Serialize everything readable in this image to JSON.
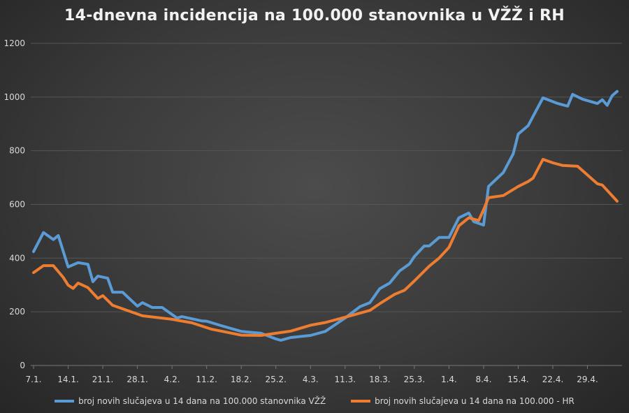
{
  "chart_data": {
    "type": "line",
    "title": "14-dnevna incidencija na 100.000 stanovnika u VŽŽ i RH",
    "xlabel": "",
    "ylabel": "",
    "ylim": [
      0,
      1200
    ],
    "yticks": [
      "0",
      "200",
      "400",
      "600",
      "800",
      "1000",
      "1200"
    ],
    "xticks": [
      "7.1.",
      "14.1.",
      "21.1.",
      "28.1.",
      "4.2.",
      "11.2.",
      "18.2.",
      "25.2.",
      "4.3.",
      "11.3.",
      "18.3.",
      "25.3.",
      "1.4.",
      "8.4.",
      "15.4.",
      "22.4.",
      "29.4."
    ],
    "xrange": [
      "7.1.",
      "5.5."
    ],
    "grid": "horizontal",
    "legend_position": "bottom",
    "series": [
      {
        "name": "broj novih slučajeva u 14 dana na 100.000 stanovnika VŽŽ",
        "color": "#5b9bd5",
        "points": [
          [
            "7.1.",
            424
          ],
          [
            "9.1.",
            495
          ],
          [
            "11.1.",
            469
          ],
          [
            "12.1.",
            484
          ],
          [
            "14.1.",
            367
          ],
          [
            "16.1.",
            383
          ],
          [
            "18.1.",
            377
          ],
          [
            "19.1.",
            312
          ],
          [
            "20.1.",
            333
          ],
          [
            "22.1.",
            325
          ],
          [
            "23.1.",
            273
          ],
          [
            "25.1.",
            273
          ],
          [
            "28.1.",
            221
          ],
          [
            "29.1.",
            234
          ],
          [
            "31.1.",
            216
          ],
          [
            "2.2.",
            216
          ],
          [
            "5.2.",
            177
          ],
          [
            "6.2.",
            182
          ],
          [
            "10.2.",
            166
          ],
          [
            "11.2.",
            165
          ],
          [
            "14.2.",
            148
          ],
          [
            "18.2.",
            127
          ],
          [
            "22.2.",
            120
          ],
          [
            "25.2.",
            99
          ],
          [
            "26.2.",
            94
          ],
          [
            "28.2.",
            104
          ],
          [
            "4.3.",
            112
          ],
          [
            "7.3.",
            127
          ],
          [
            "11.3.",
            177
          ],
          [
            "14.3.",
            219
          ],
          [
            "16.3.",
            234
          ],
          [
            "18.3.",
            286
          ],
          [
            "20.3.",
            307
          ],
          [
            "22.3.",
            352
          ],
          [
            "24.3.",
            378
          ],
          [
            "25.3.",
            406
          ],
          [
            "27.3.",
            445
          ],
          [
            "28.3.",
            445
          ],
          [
            "30.3.",
            477
          ],
          [
            "1.4.",
            477
          ],
          [
            "3.4.",
            550
          ],
          [
            "5.4.",
            568
          ],
          [
            "6.4.",
            536
          ],
          [
            "8.4.",
            523
          ],
          [
            "9.4.",
            667
          ],
          [
            "12.4.",
            719
          ],
          [
            "14.4.",
            789
          ],
          [
            "15.4.",
            862
          ],
          [
            "17.4.",
            893
          ],
          [
            "20.4.",
            997
          ],
          [
            "23.4.",
            976
          ],
          [
            "25.4.",
            966
          ],
          [
            "26.4.",
            1010
          ],
          [
            "28.4.",
            992
          ],
          [
            "1.5.",
            976
          ],
          [
            "2.5.",
            990
          ],
          [
            "3.5.",
            969
          ],
          [
            "4.5.",
            1005
          ],
          [
            "5.5.",
            1021
          ]
        ]
      },
      {
        "name": "broj novih slučajeva u 14 dana na 100.000 - HR",
        "color": "#ed7d31",
        "points": [
          [
            "7.1.",
            346
          ],
          [
            "9.1.",
            372
          ],
          [
            "11.1.",
            372
          ],
          [
            "13.1.",
            328
          ],
          [
            "14.1.",
            299
          ],
          [
            "15.1.",
            287
          ],
          [
            "16.1.",
            307
          ],
          [
            "18.1.",
            290
          ],
          [
            "20.1.",
            250
          ],
          [
            "21.1.",
            260
          ],
          [
            "23.1.",
            224
          ],
          [
            "25.1.",
            211
          ],
          [
            "29.1.",
            185
          ],
          [
            "4.2.",
            172
          ],
          [
            "8.2.",
            159
          ],
          [
            "12.2.",
            135
          ],
          [
            "18.2.",
            113
          ],
          [
            "22.2.",
            112
          ],
          [
            "25.2.",
            120
          ],
          [
            "28.2.",
            128
          ],
          [
            "4.3.",
            150
          ],
          [
            "7.3.",
            160
          ],
          [
            "11.3.",
            180
          ],
          [
            "14.3.",
            195
          ],
          [
            "16.3.",
            205
          ],
          [
            "18.3.",
            230
          ],
          [
            "21.3.",
            265
          ],
          [
            "23.3.",
            280
          ],
          [
            "25.3.",
            315
          ],
          [
            "28.3.",
            370
          ],
          [
            "30.3.",
            400
          ],
          [
            "1.4.",
            440
          ],
          [
            "3.4.",
            520
          ],
          [
            "5.4.",
            550
          ],
          [
            "7.4.",
            540
          ],
          [
            "8.4.",
            580
          ],
          [
            "9.4.",
            625
          ],
          [
            "12.4.",
            633
          ],
          [
            "15.4.",
            667
          ],
          [
            "17.4.",
            685
          ],
          [
            "18.4.",
            698
          ],
          [
            "20.4.",
            768
          ],
          [
            "22.4.",
            755
          ],
          [
            "24.4.",
            745
          ],
          [
            "27.4.",
            742
          ],
          [
            "1.5.",
            677
          ],
          [
            "2.5.",
            672
          ],
          [
            "5.5.",
            612
          ]
        ]
      }
    ]
  }
}
